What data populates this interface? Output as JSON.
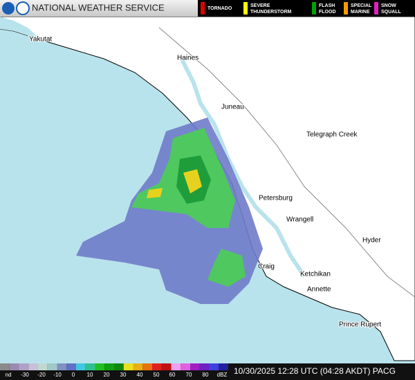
{
  "header": {
    "title": "NATIONAL WEATHER SERVICE",
    "warnings": [
      [
        "TORNADO"
      ],
      [
        "SEVERE",
        "THUNDERSTORM"
      ],
      [
        "FLASH",
        "FLOOD"
      ],
      [
        "SPECIAL",
        "MARINE"
      ],
      [
        "SNOW",
        "SQUALL"
      ]
    ]
  },
  "places": [
    "Yakutat",
    "Haines",
    "Juneau",
    "Telegraph Creek",
    "Petersburg",
    "Wrangell",
    "Hyder",
    "Craig",
    "Ketchikan",
    "Annette",
    "Prince Rupert"
  ],
  "scale": {
    "labels": [
      "nd",
      "-30",
      "-20",
      "-10",
      "0",
      "10",
      "20",
      "30",
      "40",
      "50",
      "60",
      "70",
      "80",
      "dBZ"
    ]
  },
  "timestamp": "10/30/2025 12:28 UTC (04:28 AKDT) PACG"
}
